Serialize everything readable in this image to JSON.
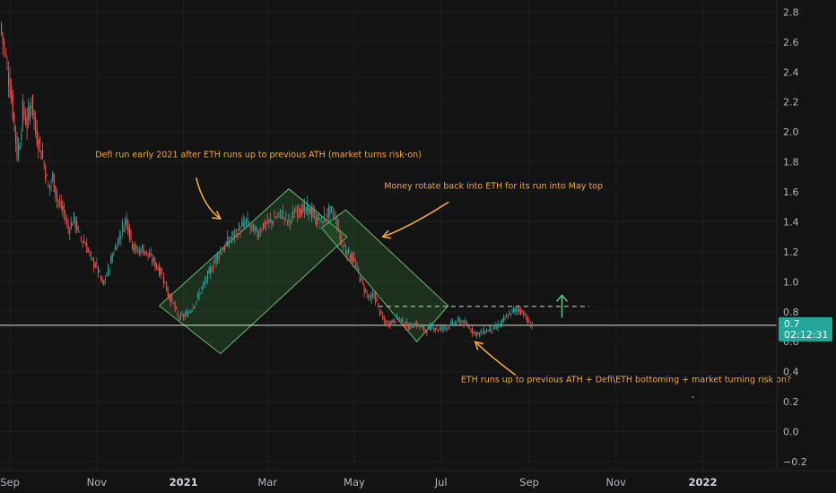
{
  "colors": {
    "background": "#131313",
    "grid": "#1e1e1e",
    "up_candle": "#26a69a",
    "down_candle": "#ef5350",
    "annotation_text": "#f0a93a",
    "arrow": "#f0a93a",
    "channel_fill": "rgba(76,175,80,0.18)",
    "channel_stroke": "#66bb6a",
    "support_line": "#d8ecd8",
    "resistance_line": "#d8d8d8",
    "target_arrow": "#5cc67a",
    "price_tag": "#26a69a",
    "axis_text": "#b2b5be"
  },
  "chart_data": {
    "type": "candlestick",
    "y_axis": {
      "ticks": [
        2.8,
        2.6,
        2.4,
        2.2,
        2.0,
        1.8,
        1.6,
        1.4,
        1.2,
        1.0,
        0.8,
        0.6,
        0.4,
        0.2,
        0.0,
        -0.2
      ],
      "tick_labels": [
        "2.8",
        "2.6",
        "2.4",
        "2.2",
        "2.0",
        "1.8",
        "1.6",
        "1.4",
        "1.2",
        "1.0",
        "0.8",
        "0.6",
        "0.4",
        "0.2",
        "0.0",
        "−0.2"
      ],
      "range": [
        -0.26,
        2.88
      ]
    },
    "x_axis": {
      "ticks": [
        "2020-09-01",
        "2020-11-01",
        "2021-01-01",
        "2021-03-01",
        "2021-05-01",
        "2021-07-01",
        "2021-09-01",
        "2021-11-01",
        "2022-01-01"
      ],
      "tick_labels": [
        "Sep",
        "Nov",
        "2021",
        "Mar",
        "May",
        "Jul",
        "Sep",
        "Nov",
        "2022"
      ],
      "bold_labels": [
        "2021",
        "2022"
      ],
      "range": [
        "2020-08-25",
        "2022-02-22"
      ]
    },
    "series_points": [
      [
        "2020-08-25",
        2.72
      ],
      [
        "2020-08-28",
        2.55
      ],
      [
        "2020-09-01",
        2.3
      ],
      [
        "2020-09-04",
        2.05
      ],
      [
        "2020-09-06",
        1.85
      ],
      [
        "2020-09-08",
        1.95
      ],
      [
        "2020-09-10",
        2.15
      ],
      [
        "2020-09-13",
        2.05
      ],
      [
        "2020-09-16",
        2.22
      ],
      [
        "2020-09-19",
        2.0
      ],
      [
        "2020-09-22",
        1.9
      ],
      [
        "2020-09-25",
        1.78
      ],
      [
        "2020-09-28",
        1.62
      ],
      [
        "2020-10-01",
        1.7
      ],
      [
        "2020-10-04",
        1.55
      ],
      [
        "2020-10-08",
        1.48
      ],
      [
        "2020-10-12",
        1.35
      ],
      [
        "2020-10-16",
        1.42
      ],
      [
        "2020-10-20",
        1.3
      ],
      [
        "2020-10-24",
        1.25
      ],
      [
        "2020-10-28",
        1.15
      ],
      [
        "2020-11-01",
        1.1
      ],
      [
        "2020-11-05",
        0.98
      ],
      [
        "2020-11-08",
        1.05
      ],
      [
        "2020-11-12",
        1.18
      ],
      [
        "2020-11-16",
        1.28
      ],
      [
        "2020-11-19",
        1.36
      ],
      [
        "2020-11-22",
        1.42
      ],
      [
        "2020-11-25",
        1.28
      ],
      [
        "2020-11-29",
        1.2
      ],
      [
        "2020-12-03",
        1.22
      ],
      [
        "2020-12-07",
        1.18
      ],
      [
        "2020-12-12",
        1.12
      ],
      [
        "2020-12-17",
        1.05
      ],
      [
        "2020-12-21",
        0.92
      ],
      [
        "2020-12-25",
        0.85
      ],
      [
        "2020-12-28",
        0.76
      ],
      [
        "2021-01-01",
        0.77
      ],
      [
        "2021-01-05",
        0.8
      ],
      [
        "2021-01-09",
        0.86
      ],
      [
        "2021-01-13",
        0.94
      ],
      [
        "2021-01-17",
        1.02
      ],
      [
        "2021-01-21",
        1.1
      ],
      [
        "2021-01-25",
        1.18
      ],
      [
        "2021-01-29",
        1.22
      ],
      [
        "2021-02-02",
        1.28
      ],
      [
        "2021-02-06",
        1.32
      ],
      [
        "2021-02-10",
        1.36
      ],
      [
        "2021-02-14",
        1.4
      ],
      [
        "2021-02-18",
        1.35
      ],
      [
        "2021-02-22",
        1.32
      ],
      [
        "2021-02-26",
        1.38
      ],
      [
        "2021-03-03",
        1.4
      ],
      [
        "2021-03-07",
        1.43
      ],
      [
        "2021-03-11",
        1.46
      ],
      [
        "2021-03-15",
        1.4
      ],
      [
        "2021-03-19",
        1.44
      ],
      [
        "2021-03-23",
        1.5
      ],
      [
        "2021-03-27",
        1.47
      ],
      [
        "2021-03-31",
        1.48
      ],
      [
        "2021-04-04",
        1.42
      ],
      [
        "2021-04-08",
        1.4
      ],
      [
        "2021-04-12",
        1.45
      ],
      [
        "2021-04-16",
        1.46
      ],
      [
        "2021-04-19",
        1.38
      ],
      [
        "2021-04-22",
        1.25
      ],
      [
        "2021-04-26",
        1.2
      ],
      [
        "2021-04-30",
        1.15
      ],
      [
        "2021-05-04",
        1.05
      ],
      [
        "2021-05-08",
        0.95
      ],
      [
        "2021-05-12",
        0.88
      ],
      [
        "2021-05-15",
        0.92
      ],
      [
        "2021-05-18",
        0.82
      ],
      [
        "2021-05-21",
        0.75
      ],
      [
        "2021-05-24",
        0.72
      ],
      [
        "2021-05-28",
        0.74
      ],
      [
        "2021-06-01",
        0.76
      ],
      [
        "2021-06-05",
        0.72
      ],
      [
        "2021-06-09",
        0.7
      ],
      [
        "2021-06-13",
        0.72
      ],
      [
        "2021-06-17",
        0.69
      ],
      [
        "2021-06-21",
        0.68
      ],
      [
        "2021-06-25",
        0.7
      ],
      [
        "2021-06-29",
        0.68
      ],
      [
        "2021-07-03",
        0.69
      ],
      [
        "2021-07-07",
        0.71
      ],
      [
        "2021-07-11",
        0.73
      ],
      [
        "2021-07-15",
        0.74
      ],
      [
        "2021-07-19",
        0.71
      ],
      [
        "2021-07-23",
        0.67
      ],
      [
        "2021-07-27",
        0.65
      ],
      [
        "2021-07-31",
        0.67
      ],
      [
        "2021-08-04",
        0.68
      ],
      [
        "2021-08-08",
        0.69
      ],
      [
        "2021-08-12",
        0.72
      ],
      [
        "2021-08-16",
        0.77
      ],
      [
        "2021-08-20",
        0.8
      ],
      [
        "2021-08-24",
        0.82
      ],
      [
        "2021-08-28",
        0.79
      ],
      [
        "2021-08-31",
        0.73
      ],
      [
        "2021-09-03",
        0.71
      ]
    ],
    "support_line": {
      "value": 0.71,
      "style": "solid"
    },
    "resistance_line": {
      "value": 0.835,
      "style": "dashed",
      "from": "2021-05-18",
      "to": "2021-10-13"
    },
    "target_arrow": {
      "date": "2021-09-24",
      "from": 0.76,
      "to": 0.91
    },
    "channels": [
      {
        "name": "up-channel",
        "corners": [
          [
            "2020-12-15",
            0.84
          ],
          [
            "2021-03-16",
            1.62
          ],
          [
            "2021-04-26",
            1.3
          ],
          [
            "2021-01-27",
            0.52
          ]
        ]
      },
      {
        "name": "down-channel",
        "corners": [
          [
            "2021-04-08",
            1.36
          ],
          [
            "2021-04-25",
            1.48
          ],
          [
            "2021-07-06",
            0.84
          ],
          [
            "2021-06-14",
            0.6
          ]
        ]
      }
    ],
    "annotations": [
      {
        "text": "Defi run early 2021 after ETH runs up to previous ATH (market turns risk-on)",
        "date": "2020-10-31",
        "value": 1.83
      },
      {
        "text": "Money rotate back into ETH for its run into May top",
        "date": "2021-05-22",
        "value": 1.62
      },
      {
        "text": "ETH runs up to previous ATH + Defi\\ETH bottoming + market turning risk on?",
        "date": "2021-07-15",
        "value": 0.33
      }
    ],
    "arrows": [
      {
        "name": "arrow-1",
        "from": [
          "2021-01-10",
          1.69
        ],
        "ctrl": [
          "2021-01-15",
          1.5
        ],
        "to": [
          "2021-01-27",
          1.42
        ]
      },
      {
        "name": "arrow-2",
        "from": [
          "2021-07-06",
          1.53
        ],
        "ctrl": [
          "2021-06-08",
          1.36
        ],
        "to": [
          "2021-05-21",
          1.3
        ]
      },
      {
        "name": "arrow-3",
        "from": [
          "2021-08-22",
          0.38
        ],
        "ctrl": [
          "2021-08-05",
          0.5
        ],
        "to": [
          "2021-07-25",
          0.6
        ]
      }
    ],
    "current_price": {
      "label": "0.7",
      "countdown": "02:12:31",
      "value": 0.71
    },
    "dot_marker": {
      "date": "2021-12-25",
      "value": 0.23
    }
  }
}
